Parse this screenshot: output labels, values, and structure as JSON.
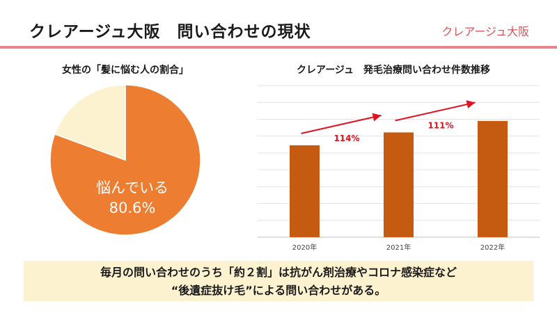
{
  "header": {
    "title": "クレアージュ大阪　問い合わせの現状",
    "brand": "クレアージュ大阪"
  },
  "colors": {
    "rule": "#e8868f",
    "brand_text": "#d9535b",
    "pie_main": "#ed7d31",
    "pie_rest": "#fdf2d0",
    "bar": "#c55a11",
    "arrow": "#e0121f",
    "note_bg": "#fdf2d0"
  },
  "chart_data": [
    {
      "type": "pie",
      "title": "女性の「髪に悩む人の割合」",
      "slices": [
        {
          "label": "悩んでいる",
          "value": 80.6,
          "display": "80.6%"
        },
        {
          "label": "",
          "value": 19.4
        }
      ]
    },
    {
      "type": "bar",
      "title": "クレアージュ　発毛治療問い合わせ件数推移",
      "categories": [
        "2020年",
        "2021年",
        "2022年"
      ],
      "values": [
        100,
        114,
        126.5
      ],
      "ylim": [
        0,
        165
      ],
      "grid": true,
      "annotations": [
        {
          "from": "2020年",
          "to": "2021年",
          "text": "114%"
        },
        {
          "from": "2021年",
          "to": "2022年",
          "text": "111%"
        }
      ]
    }
  ],
  "note": {
    "line1": "毎月の問い合わせのうち「約２割」は抗がん剤治療やコロナ感染症など",
    "line2": "“後遺症抜け毛”による問い合わせがある。"
  }
}
